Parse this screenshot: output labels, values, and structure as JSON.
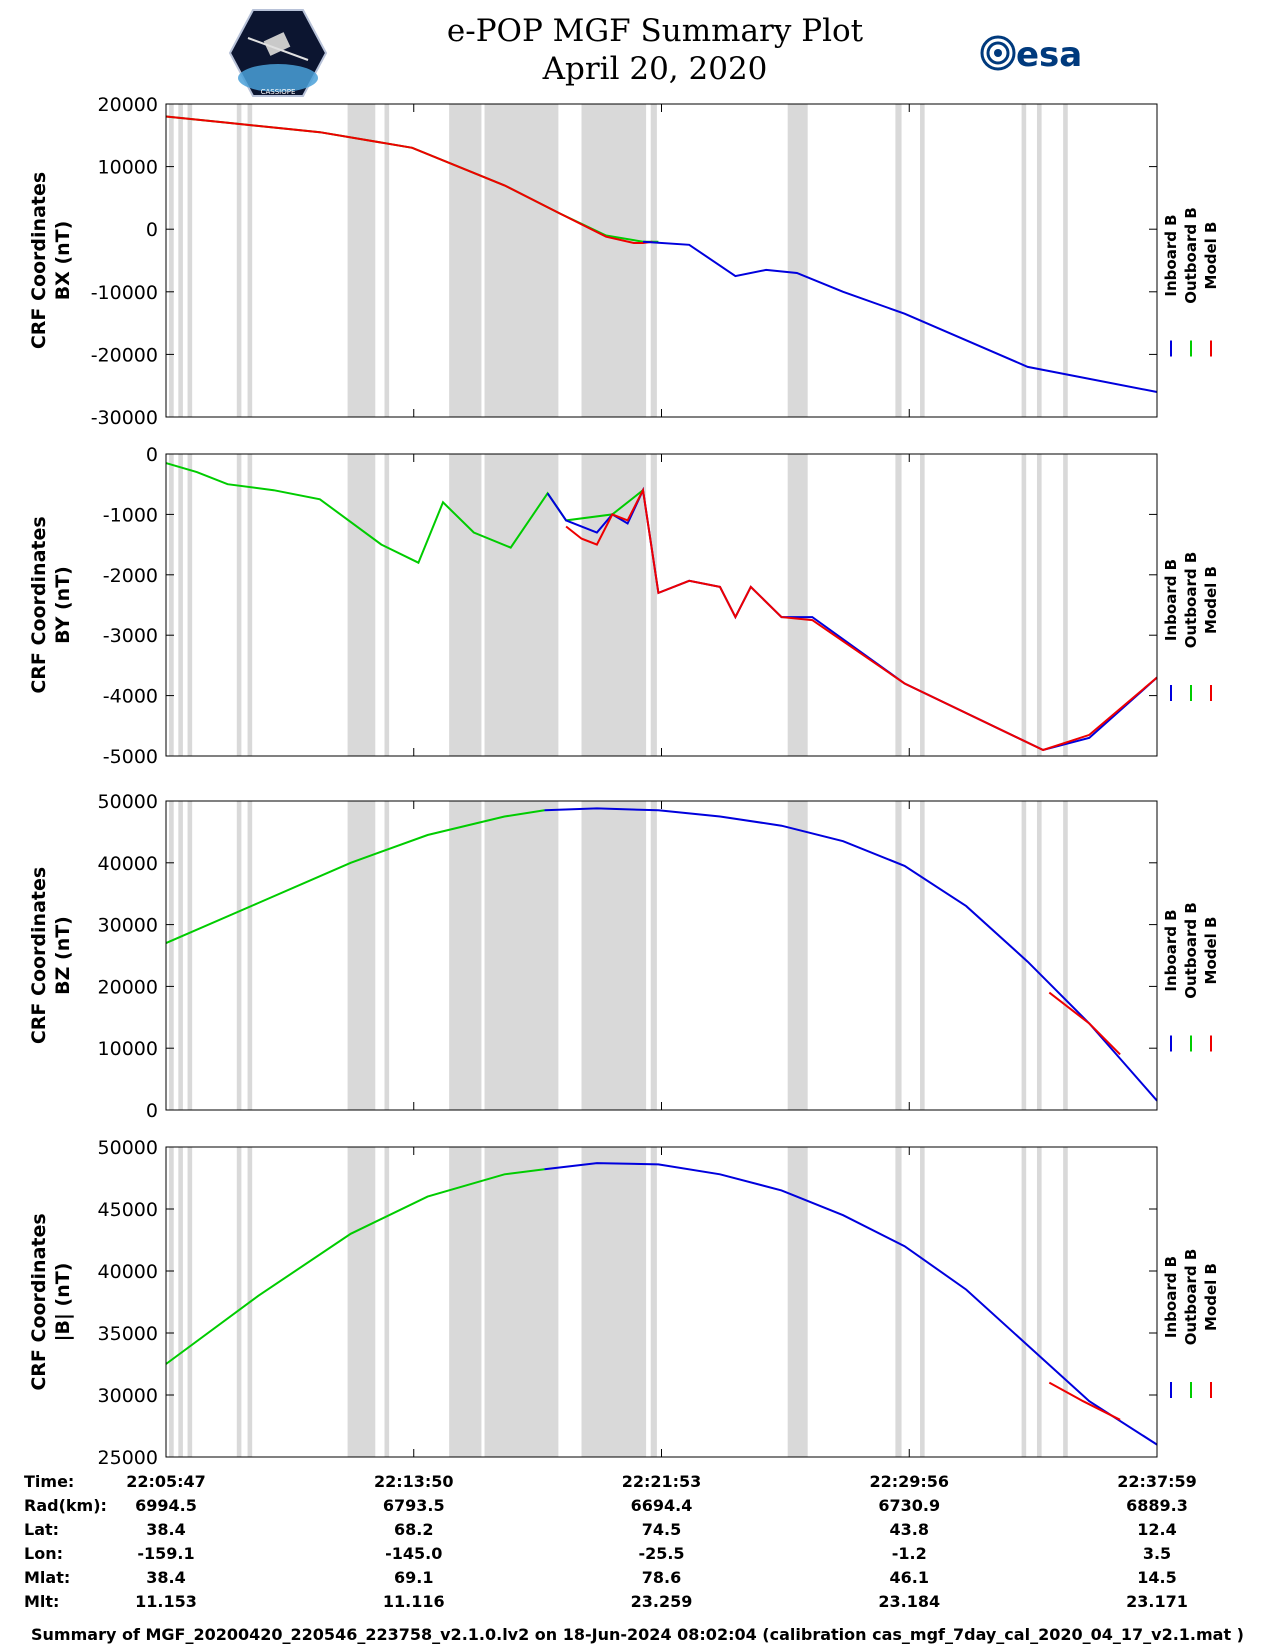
{
  "title": {
    "line1": "e-POP MGF Summary Plot",
    "line2": "April 20, 2020"
  },
  "logos": {
    "left": "CASSIOPE",
    "right": "esa"
  },
  "colors": {
    "inboard": "#0000dd",
    "outboard": "#00cc00",
    "model": "#ee0000",
    "shade": "#d9d9d9",
    "axis": "#000000"
  },
  "legend": [
    "Inboard B",
    "Outboard B",
    "Model B"
  ],
  "chart_data": [
    {
      "type": "line",
      "ylabel": [
        "CRF Coordinates",
        "BX (nT)"
      ],
      "ylim": [
        -30000,
        20000
      ],
      "yticks": [
        20000,
        10000,
        0,
        -10000,
        -20000,
        -30000
      ],
      "xlim": [
        0,
        32.2
      ],
      "series": [
        {
          "name": "Outboard B",
          "x": [
            0,
            2,
            5,
            8,
            11,
            12.8,
            14.3,
            15.5,
            16
          ],
          "values": [
            18000,
            17000,
            15500,
            13000,
            7000,
            2500,
            -1000,
            -2000,
            -2000
          ]
        },
        {
          "name": "Model B",
          "x": [
            0,
            2,
            5,
            8,
            11,
            12.8,
            14.3,
            15.2,
            15.5,
            15.8
          ],
          "values": [
            18000,
            17000,
            15500,
            13000,
            7000,
            2500,
            -1200,
            -2200,
            -2200,
            -2000
          ]
        },
        {
          "name": "Inboard B",
          "x": [
            15.5,
            17,
            18.5,
            19.5,
            20.5,
            22,
            24,
            28,
            32.2
          ],
          "values": [
            -2000,
            -2500,
            -7500,
            -6500,
            -7000,
            -10000,
            -13500,
            -22000,
            -26000
          ]
        }
      ]
    },
    {
      "type": "line",
      "ylabel": [
        "CRF Coordinates",
        "BY (nT)"
      ],
      "ylim": [
        -5000,
        0
      ],
      "yticks": [
        0,
        -1000,
        -2000,
        -3000,
        -4000,
        -5000
      ],
      "xlim": [
        0,
        32.2
      ],
      "series": [
        {
          "name": "Outboard B",
          "x": [
            0,
            1,
            2,
            3.5,
            5,
            7,
            8.2,
            9,
            10,
            11.2,
            12.4,
            13,
            14.5,
            15.5
          ],
          "values": [
            -150,
            -300,
            -500,
            -600,
            -750,
            -1500,
            -1800,
            -800,
            -1300,
            -1550,
            -650,
            -1100,
            -1000,
            -600
          ]
        },
        {
          "name": "Inboard B",
          "x": [
            12.4,
            13,
            14,
            14.5,
            15,
            15.5,
            16,
            17,
            18,
            18.5,
            19,
            20,
            21,
            24,
            28.5,
            30,
            32.2
          ],
          "values": [
            -650,
            -1100,
            -1300,
            -1000,
            -1150,
            -600,
            -2300,
            -2100,
            -2200,
            -2700,
            -2200,
            -2700,
            -2700,
            -3800,
            -4900,
            -4700,
            -3700
          ]
        },
        {
          "name": "Model B",
          "x": [
            13,
            13.5,
            14,
            14.5,
            15,
            15.5,
            16,
            17,
            18,
            18.5,
            19,
            20,
            21,
            24,
            28.5,
            30,
            32.2
          ],
          "values": [
            -1200,
            -1400,
            -1500,
            -1000,
            -1100,
            -600,
            -2300,
            -2100,
            -2200,
            -2700,
            -2200,
            -2700,
            -2750,
            -3800,
            -4900,
            -4650,
            -3700
          ]
        }
      ]
    },
    {
      "type": "line",
      "ylabel": [
        "CRF Coordinates",
        "BZ (nT)"
      ],
      "ylim": [
        0,
        50000
      ],
      "yticks": [
        50000,
        40000,
        30000,
        20000,
        10000,
        0
      ],
      "xlim": [
        0,
        32.2
      ],
      "series": [
        {
          "name": "Outboard B",
          "x": [
            0,
            3,
            6,
            8.5,
            11,
            12.3
          ],
          "values": [
            27000,
            33500,
            40000,
            44500,
            47500,
            48500
          ]
        },
        {
          "name": "Inboard B",
          "x": [
            12.3,
            14,
            16,
            18,
            20,
            22,
            24,
            26,
            28,
            30,
            32.2
          ],
          "values": [
            48500,
            48800,
            48500,
            47500,
            46000,
            43500,
            39500,
            33000,
            24000,
            14000,
            1500
          ]
        },
        {
          "name": "Model B",
          "x": [
            28.7,
            30,
            31
          ],
          "values": [
            19000,
            14000,
            9000
          ]
        }
      ]
    },
    {
      "type": "line",
      "ylabel": [
        "CRF Coordinates",
        "|B| (nT)"
      ],
      "ylim": [
        25000,
        50000
      ],
      "yticks": [
        50000,
        45000,
        40000,
        35000,
        30000,
        25000
      ],
      "xlim": [
        0,
        32.2
      ],
      "series": [
        {
          "name": "Outboard B",
          "x": [
            0,
            3,
            6,
            8.5,
            11,
            12.3
          ],
          "values": [
            32500,
            38000,
            43000,
            46000,
            47800,
            48200
          ]
        },
        {
          "name": "Inboard B",
          "x": [
            12.3,
            14,
            16,
            18,
            20,
            22,
            24,
            26,
            28,
            30,
            32.2
          ],
          "values": [
            48200,
            48700,
            48600,
            47800,
            46500,
            44500,
            42000,
            38500,
            34000,
            29500,
            26000
          ]
        },
        {
          "name": "Model B",
          "x": [
            28.7,
            29.8,
            31
          ],
          "values": [
            31000,
            29500,
            28000
          ]
        }
      ]
    }
  ],
  "shaded_regions": [
    [
      0.1,
      0.25
    ],
    [
      0.4,
      0.55
    ],
    [
      0.7,
      0.85
    ],
    [
      2.3,
      2.45
    ],
    [
      2.65,
      2.8
    ],
    [
      5.9,
      6.8
    ],
    [
      7.1,
      7.25
    ],
    [
      9.2,
      10.25
    ],
    [
      10.35,
      12.75
    ],
    [
      13.5,
      15.6
    ],
    [
      15.75,
      15.95
    ],
    [
      20.2,
      20.85
    ],
    [
      23.7,
      23.9
    ],
    [
      24.5,
      24.65
    ],
    [
      27.8,
      27.95
    ],
    [
      28.3,
      28.45
    ],
    [
      29.15,
      29.3
    ]
  ],
  "xticks_pos": [
    0,
    8.05,
    16.1,
    24.15,
    32.2
  ],
  "ephemeris": {
    "labels": [
      "Time:",
      "Rad(km):",
      "Lat:",
      "Lon:",
      "Mlat:",
      "Mlt:"
    ],
    "columns": [
      [
        "22:05:47",
        "6994.5",
        "38.4",
        "-159.1",
        "38.4",
        "11.153"
      ],
      [
        "22:13:50",
        "6793.5",
        "68.2",
        "-145.0",
        "69.1",
        "11.116"
      ],
      [
        "22:21:53",
        "6694.4",
        "74.5",
        "-25.5",
        "78.6",
        "23.259"
      ],
      [
        "22:29:56",
        "6730.9",
        "43.8",
        "-1.2",
        "46.1",
        "23.184"
      ],
      [
        "22:37:59",
        "6889.3",
        "12.4",
        "3.5",
        "14.5",
        "23.171"
      ]
    ]
  },
  "footer": "Summary of MGF_20200420_220546_223758_v2.1.0.lv2 on 18-Jun-2024 08:02:04 (calibration cas_mgf_7day_cal_2020_04_17_v2.1.mat )"
}
